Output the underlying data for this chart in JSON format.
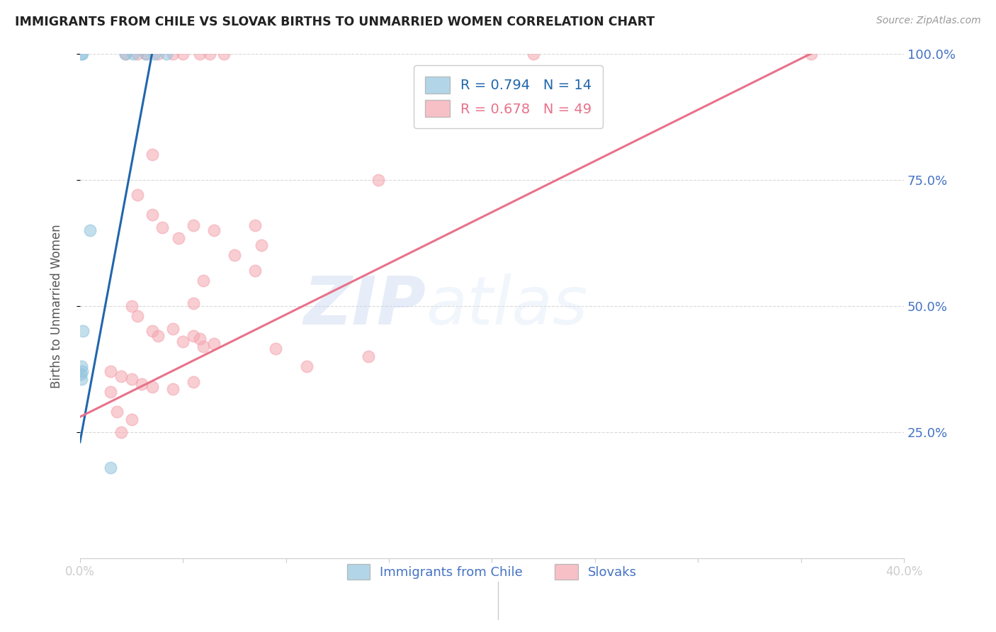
{
  "title": "IMMIGRANTS FROM CHILE VS SLOVAK BIRTHS TO UNMARRIED WOMEN CORRELATION CHART",
  "source": "Source: ZipAtlas.com",
  "ylabel": "Births to Unmarried Women",
  "xlim": [
    0.0,
    40.0
  ],
  "ylim": [
    0.0,
    100.0
  ],
  "y_ticks": [
    25.0,
    50.0,
    75.0,
    100.0
  ],
  "x_ticks": [
    0.0,
    5.0,
    10.0,
    15.0,
    20.0,
    25.0,
    30.0,
    35.0,
    40.0
  ],
  "blue_R": 0.794,
  "blue_N": 14,
  "pink_R": 0.678,
  "pink_N": 49,
  "blue_color": "#92c5de",
  "pink_color": "#f4a6b0",
  "blue_line_color": "#2166ac",
  "pink_line_color": "#e8728a",
  "legend_blue_label": "Immigrants from Chile",
  "legend_pink_label": "Slovaks",
  "watermark_zip": "ZIP",
  "watermark_atlas": "atlas",
  "blue_points": [
    [
      0.08,
      100.0
    ],
    [
      0.12,
      100.0
    ],
    [
      2.2,
      100.0
    ],
    [
      2.6,
      100.0
    ],
    [
      3.2,
      100.0
    ],
    [
      3.6,
      100.0
    ],
    [
      4.2,
      100.0
    ],
    [
      0.5,
      65.0
    ],
    [
      0.15,
      45.0
    ],
    [
      0.06,
      38.0
    ],
    [
      0.1,
      37.0
    ],
    [
      0.04,
      36.5
    ],
    [
      0.08,
      35.5
    ],
    [
      1.5,
      18.0
    ]
  ],
  "pink_points": [
    [
      2.2,
      100.0
    ],
    [
      2.8,
      100.0
    ],
    [
      3.2,
      100.0
    ],
    [
      3.8,
      100.0
    ],
    [
      4.5,
      100.0
    ],
    [
      5.0,
      100.0
    ],
    [
      5.8,
      100.0
    ],
    [
      6.3,
      100.0
    ],
    [
      7.0,
      100.0
    ],
    [
      22.0,
      100.0
    ],
    [
      35.5,
      100.0
    ],
    [
      3.5,
      80.0
    ],
    [
      2.8,
      72.0
    ],
    [
      3.5,
      68.0
    ],
    [
      4.0,
      65.5
    ],
    [
      5.5,
      66.0
    ],
    [
      4.8,
      63.5
    ],
    [
      6.5,
      65.0
    ],
    [
      8.5,
      66.0
    ],
    [
      14.5,
      75.0
    ],
    [
      5.5,
      50.5
    ],
    [
      6.0,
      55.0
    ],
    [
      7.5,
      60.0
    ],
    [
      8.5,
      57.0
    ],
    [
      8.8,
      62.0
    ],
    [
      2.5,
      50.0
    ],
    [
      2.8,
      48.0
    ],
    [
      3.5,
      45.0
    ],
    [
      3.8,
      44.0
    ],
    [
      4.5,
      45.5
    ],
    [
      5.0,
      43.0
    ],
    [
      5.5,
      44.0
    ],
    [
      5.8,
      43.5
    ],
    [
      6.0,
      42.0
    ],
    [
      6.5,
      42.5
    ],
    [
      1.5,
      37.0
    ],
    [
      2.0,
      36.0
    ],
    [
      2.5,
      35.5
    ],
    [
      3.0,
      34.5
    ],
    [
      3.5,
      34.0
    ],
    [
      4.5,
      33.5
    ],
    [
      5.5,
      35.0
    ],
    [
      9.5,
      41.5
    ],
    [
      1.8,
      29.0
    ],
    [
      2.5,
      27.5
    ],
    [
      11.0,
      38.0
    ],
    [
      14.0,
      40.0
    ],
    [
      1.5,
      33.0
    ],
    [
      2.0,
      25.0
    ]
  ],
  "blue_line": [
    [
      0.0,
      23.0
    ],
    [
      3.5,
      100.0
    ]
  ],
  "pink_line": [
    [
      0.0,
      28.0
    ],
    [
      35.5,
      100.0
    ]
  ],
  "background_color": "#ffffff",
  "grid_color": "#d0d0d0"
}
